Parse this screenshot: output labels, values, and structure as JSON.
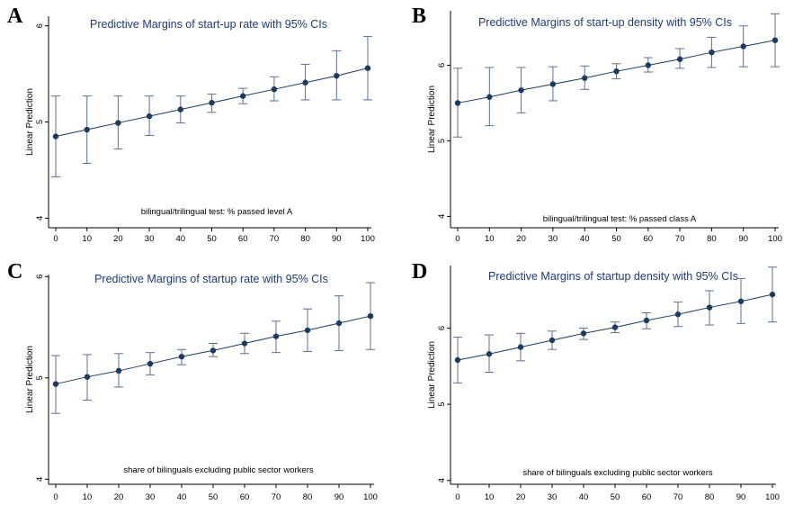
{
  "chart_data": [
    {
      "panel": "A",
      "type": "scatter",
      "title": "Predictive Margins of start-up rate with 95% CIs",
      "ylabel": "Linear Prediction",
      "xlabel": "bilingual/trilingual test: % passed level A",
      "x": [
        0,
        10,
        20,
        30,
        40,
        50,
        60,
        70,
        80,
        90,
        100
      ],
      "y": [
        4.85,
        4.92,
        4.99,
        5.06,
        5.13,
        5.2,
        5.27,
        5.34,
        5.41,
        5.48,
        5.56
      ],
      "ci_low": [
        4.43,
        4.57,
        4.72,
        4.86,
        4.99,
        5.1,
        5.19,
        5.22,
        5.23,
        5.23,
        5.23
      ],
      "ci_high": [
        5.27,
        5.27,
        5.27,
        5.27,
        5.27,
        5.29,
        5.35,
        5.47,
        5.6,
        5.74,
        5.89
      ],
      "xticks": [
        0,
        10,
        20,
        30,
        40,
        50,
        60,
        70,
        80,
        90,
        100
      ],
      "yticks": [
        4,
        5,
        6
      ],
      "xlim": [
        0,
        100
      ],
      "ylim": [
        3.9,
        6.1
      ]
    },
    {
      "panel": "B",
      "type": "scatter",
      "title": "Predictive Margins of start-up density with 95% CIs",
      "ylabel": "Linear Prediction",
      "xlabel": "bilingual/trilingual test: % passed class A",
      "x": [
        0,
        10,
        20,
        30,
        40,
        50,
        60,
        70,
        80,
        90,
        100
      ],
      "y": [
        5.5,
        5.58,
        5.67,
        5.75,
        5.83,
        5.92,
        6.0,
        6.08,
        6.17,
        6.25,
        6.33
      ],
      "ci_low": [
        5.05,
        5.2,
        5.37,
        5.53,
        5.68,
        5.82,
        5.91,
        5.96,
        5.97,
        5.98,
        5.98
      ],
      "ci_high": [
        5.96,
        5.97,
        5.97,
        5.98,
        5.99,
        6.02,
        6.1,
        6.22,
        6.37,
        6.52,
        6.68
      ],
      "xticks": [
        0,
        10,
        20,
        30,
        40,
        50,
        60,
        70,
        80,
        90,
        100
      ],
      "yticks": [
        4,
        5,
        6
      ],
      "xlim": [
        0,
        100
      ],
      "ylim": [
        3.85,
        6.72
      ]
    },
    {
      "panel": "C",
      "type": "scatter",
      "title": "Predictive Margins of startup rate with 95% CIs",
      "ylabel": "Linear Prediction",
      "xlabel": "share of bilinguals excluding public sector workers",
      "x": [
        0,
        10,
        20,
        30,
        40,
        50,
        60,
        70,
        80,
        90,
        100
      ],
      "y": [
        4.94,
        5.01,
        5.07,
        5.14,
        5.21,
        5.27,
        5.34,
        5.41,
        5.47,
        5.54,
        5.61
      ],
      "ci_low": [
        4.65,
        4.78,
        4.91,
        5.03,
        5.13,
        5.21,
        5.24,
        5.25,
        5.26,
        5.27,
        5.28
      ],
      "ci_high": [
        5.22,
        5.23,
        5.24,
        5.25,
        5.28,
        5.34,
        5.44,
        5.56,
        5.68,
        5.81,
        5.94
      ],
      "xticks": [
        0,
        10,
        20,
        30,
        40,
        50,
        60,
        70,
        80,
        90,
        100
      ],
      "yticks": [
        4,
        5,
        6
      ],
      "xlim": [
        0,
        100
      ],
      "ylim": [
        3.95,
        6.02
      ]
    },
    {
      "panel": "D",
      "type": "scatter",
      "title": "Predictive Margins of startup density with 95% CIs",
      "ylabel": "Linear Prediction",
      "xlabel": "share of bilinguals excluding public sector workers",
      "x": [
        0,
        10,
        20,
        30,
        40,
        50,
        60,
        70,
        80,
        90,
        100
      ],
      "y": [
        5.58,
        5.66,
        5.75,
        5.84,
        5.93,
        6.01,
        6.1,
        6.18,
        6.27,
        6.35,
        6.44
      ],
      "ci_low": [
        5.28,
        5.42,
        5.57,
        5.72,
        5.85,
        5.94,
        5.99,
        6.02,
        6.04,
        6.06,
        6.08
      ],
      "ci_high": [
        5.88,
        5.91,
        5.93,
        5.96,
        6.0,
        6.08,
        6.2,
        6.34,
        6.49,
        6.65,
        6.8
      ],
      "xticks": [
        0,
        10,
        20,
        30,
        40,
        50,
        60,
        70,
        80,
        90,
        100
      ],
      "yticks": [
        4,
        5,
        6
      ],
      "xlim": [
        0,
        100
      ],
      "ylim": [
        3.95,
        6.82
      ]
    }
  ]
}
